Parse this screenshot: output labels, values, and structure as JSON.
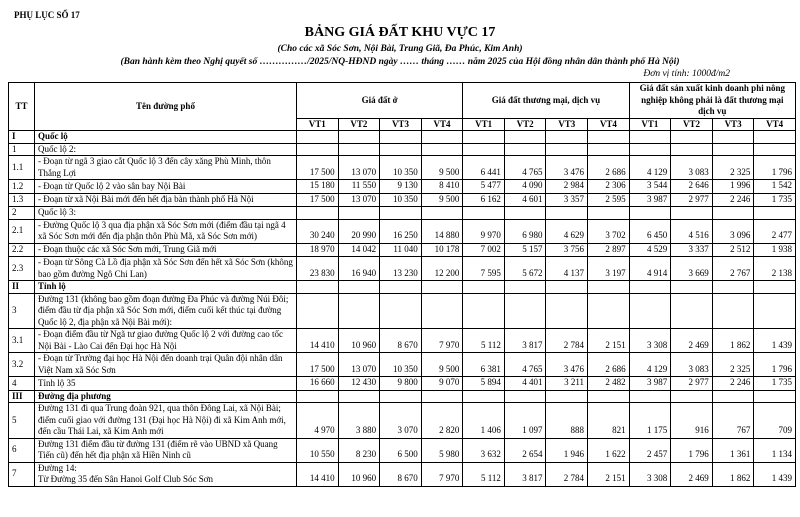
{
  "header": {
    "appendix": "PHỤ LỤC SỐ 17",
    "title": "BẢNG GIÁ ĐẤT KHU VỰC 17",
    "subtitle": "(Cho các xã Sóc Sơn, Nội Bài, Trung Giã, Đa Phúc, Kim Anh)",
    "issued": "(Ban hành kèm theo Nghị quyết số ……………/2025/NQ-HĐND ngày …… tháng …… năm 2025 của Hội đồng nhân dân thành phố Hà Nội)",
    "unit": "Đơn vị tính: 1000đ/m2"
  },
  "table": {
    "header": {
      "tt": "TT",
      "name": "Tên đường phố",
      "groups": [
        "Giá đất ở",
        "Giá đất thương mại, dịch vụ",
        "Giá đất sản xuất kinh doanh phi nông nghiệp không phải là đất thương mại dịch vụ"
      ],
      "vt": [
        "VT1",
        "VT2",
        "VT3",
        "VT4"
      ]
    },
    "rows": [
      {
        "tt": "I",
        "name": "Quốc lộ"
      },
      {
        "tt": "1",
        "name": "Quốc lộ 2:"
      },
      {
        "tt": "1.1",
        "name": "- Đoạn từ ngã 3 giao cắt Quốc lộ 3 đến cây xăng Phù Minh, thôn Thắng Lợi",
        "values": [
          "17 500",
          "13 070",
          "10 350",
          "9 500",
          "6 441",
          "4 765",
          "3 476",
          "2 686",
          "4 129",
          "3 083",
          "2 325",
          "1 796"
        ]
      },
      {
        "tt": "1.2",
        "name": "- Đoạn từ Quốc lộ 2 vào sân bay Nội Bài",
        "values": [
          "15 180",
          "11 550",
          "9 130",
          "8 410",
          "5 477",
          "4 090",
          "2 984",
          "2 306",
          "3 544",
          "2 646",
          "1 996",
          "1 542"
        ]
      },
      {
        "tt": "1.3",
        "name": "- Đoạn từ xã Nội Bài mới đến hết địa bàn thành phố Hà Nội",
        "values": [
          "17 500",
          "13 070",
          "10 350",
          "9 500",
          "6 162",
          "4 601",
          "3 357",
          "2 595",
          "3 987",
          "2 977",
          "2 246",
          "1 735"
        ]
      },
      {
        "tt": "2",
        "name": "Quốc lộ 3:"
      },
      {
        "tt": "2.1",
        "name": "- Đường Quốc lộ 3 qua địa phận xã Sóc Sơn mới (điểm đầu tại ngã 4 xã Sóc Sơn mới đến địa phận thôn Phù Mã, xã Sóc Sơn mới)",
        "values": [
          "30 240",
          "20 990",
          "16 250",
          "14 880",
          "9 970",
          "6 980",
          "4 629",
          "3 702",
          "6 450",
          "4 516",
          "3 096",
          "2 477"
        ]
      },
      {
        "tt": "2.2",
        "name": "- Đoạn thuộc các xã Sóc Sơn mới, Trung Giã mới",
        "values": [
          "18 970",
          "14 042",
          "11 040",
          "10 178",
          "7 002",
          "5 157",
          "3 756",
          "2 897",
          "4 529",
          "3 337",
          "2 512",
          "1 938"
        ]
      },
      {
        "tt": "2.3",
        "name": "- Đoạn từ Sông Cà Lồ địa phận xã Sóc Sơn đến hết xã Sóc Sơn (không bao gồm đường Ngô Chi Lan)",
        "values": [
          "23 830",
          "16 940",
          "13 230",
          "12 200",
          "7 595",
          "5 672",
          "4 137",
          "3 197",
          "4 914",
          "3 669",
          "2 767",
          "2 138"
        ]
      },
      {
        "tt": "II",
        "name": "Tỉnh lộ"
      },
      {
        "tt": "3",
        "name": "Đường 131 (không bao gồm đoạn đường Đa Phúc và đường Núi Đôi; điểm đầu từ địa phận xã Sóc Sơn mới, điểm cuối kết thúc tại đường Quốc lộ 2, địa phận xã Nội Bài mới):"
      },
      {
        "tt": "3.1",
        "name": "- Đoạn điểm đầu từ Ngã tư giao đường Quốc lộ 2 với đường cao tốc Nội Bài - Lào Cai đến Đại học Hà Nội",
        "values": [
          "14 410",
          "10 960",
          "8 670",
          "7 970",
          "5 112",
          "3 817",
          "2 784",
          "2 151",
          "3 308",
          "2 469",
          "1 862",
          "1 439"
        ]
      },
      {
        "tt": "3.2",
        "name": "- Đoạn từ Trường đại học Hà Nội đến doanh trại Quân đội nhân dân Việt Nam xã Sóc Sơn",
        "values": [
          "17 500",
          "13 070",
          "10 350",
          "9 500",
          "6 381",
          "4 765",
          "3 476",
          "2 686",
          "4 129",
          "3 083",
          "2 325",
          "1 796"
        ]
      },
      {
        "tt": "4",
        "name": "Tỉnh lộ 35",
        "values": [
          "16 660",
          "12 430",
          "9 800",
          "9 070",
          "5 894",
          "4 401",
          "3 211",
          "2 482",
          "3 987",
          "2 977",
          "2 246",
          "1 735"
        ]
      },
      {
        "tt": "III",
        "name": "Đường địa phương"
      },
      {
        "tt": "5",
        "name": "Đường 131 đi qua Trung đoàn 921, qua thôn Đông Lai, xã Nội Bài; điểm cuối giao với đường 131 (Đại học Hà Nội) đi xã Kim Anh mới, đến cầu Thái Lai, xã Kim Anh mới",
        "values": [
          "4 970",
          "3 880",
          "3 070",
          "2 820",
          "1 406",
          "1 097",
          "888",
          "821",
          "1 175",
          "916",
          "767",
          "709"
        ]
      },
      {
        "tt": "6",
        "name": "Đường 131 điểm đầu từ đường 131 (điểm rẽ vào UBND xã Quang Tiến cũ) đến hết địa phận xã Hiền Ninh cũ",
        "values": [
          "10 550",
          "8 230",
          "6 500",
          "5 980",
          "3 632",
          "2 654",
          "1 946",
          "1 622",
          "2 457",
          "1 796",
          "1 361",
          "1 134"
        ]
      },
      {
        "tt": "7",
        "name": "Đường 14:\nTừ Đường 35 đến Sân Hanoi Golf Club Sóc Sơn",
        "values": [
          "14 410",
          "10 960",
          "8 670",
          "7 970",
          "5 112",
          "3 817",
          "2 784",
          "2 151",
          "3 308",
          "2 469",
          "1 862",
          "1 439"
        ]
      }
    ]
  }
}
